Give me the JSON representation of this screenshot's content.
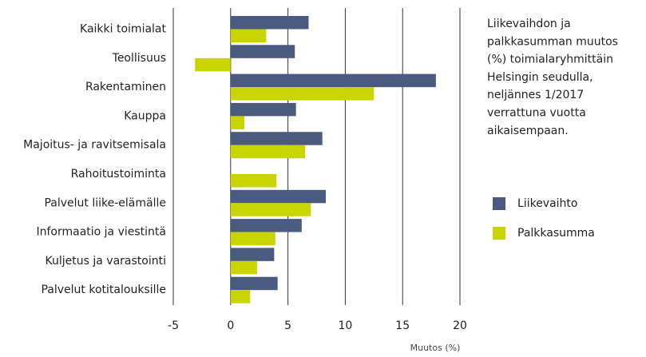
{
  "chart_data": {
    "type": "barh",
    "title": [
      "Liikevaihdon ja",
      "palkkasumman muutos",
      "(%) toimialaryhmittäin",
      "Helsingin seudulla,",
      "neljännes 1/2017",
      "verrattuna vuotta",
      "aikaisempaan."
    ],
    "xlabel": "Muutos (%)",
    "categories": [
      "Kaikki toimialat",
      "Teollisuus",
      "Rakentaminen",
      "Kauppa",
      "Majoitus- ja ravitsemisala",
      "Rahoitustoiminta",
      "Palvelut liike-elämälle",
      "Informaatio ja viestintä",
      "Kuljetus ja varastointi",
      "Palvelut kotitalouksille"
    ],
    "series": [
      {
        "name": "Liikevaihto",
        "color": "#4b5b80",
        "values": [
          6.8,
          5.6,
          17.9,
          5.7,
          8.0,
          null,
          8.3,
          6.2,
          3.8,
          4.1
        ]
      },
      {
        "name": "Palkkasumma",
        "color": "#c9d400",
        "values": [
          3.1,
          -3.1,
          12.5,
          1.2,
          6.5,
          4.0,
          7.0,
          3.9,
          2.3,
          1.7
        ]
      }
    ],
    "xlim": [
      -5,
      20
    ],
    "xticks": [
      -5,
      0,
      5,
      10,
      15,
      20
    ],
    "grid": true,
    "legend": "right"
  }
}
